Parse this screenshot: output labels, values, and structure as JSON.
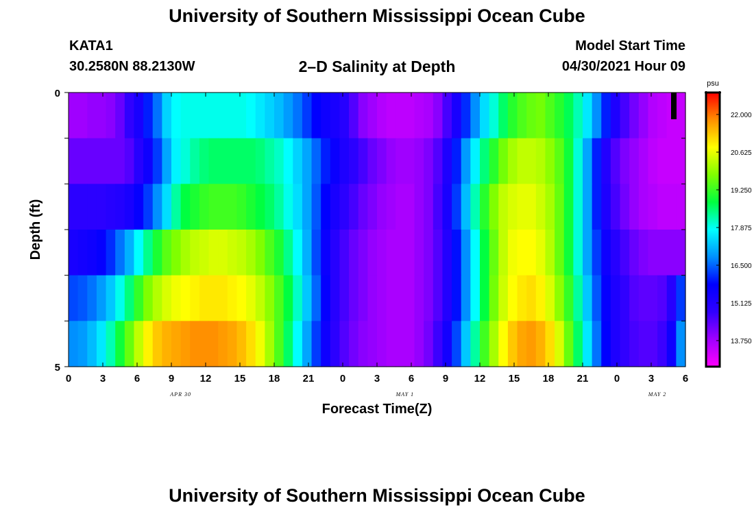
{
  "header": {
    "title": "University of Southern Mississippi Ocean Cube",
    "station_id": "KATA1",
    "station_coords": "30.2580N  88.2130W",
    "chart_title": "2–D Salinity at Depth",
    "model_start_label": "Model Start Time",
    "model_start_value": "04/30/2021 Hour 09"
  },
  "footer": {
    "title": "University of Southern Mississippi Ocean Cube"
  },
  "chart_data": {
    "type": "heatmap",
    "title": "2–D Salinity at Depth",
    "xlabel": "Forecast Time(Z)",
    "ylabel": "Depth (ft)",
    "x_tick_labels": [
      "0",
      "3",
      "6",
      "9",
      "12",
      "15",
      "18",
      "21",
      "0",
      "3",
      "6",
      "9",
      "12",
      "15",
      "18",
      "21",
      "0",
      "3",
      "6"
    ],
    "date_labels": [
      {
        "label": "APR 30",
        "hour": 12
      },
      {
        "label": "MAY 1",
        "hour": 36
      },
      {
        "label": "MAY 2",
        "hour": 63
      }
    ],
    "x_range": [
      0,
      54
    ],
    "y_range": [
      0,
      5
    ],
    "y_tick_labels": [
      "0",
      "5"
    ],
    "colorbar": {
      "unit": "psu",
      "ticks": [
        "22.000",
        "20.625",
        "19.250",
        "17.875",
        "16.500",
        "15.125",
        "13.750"
      ],
      "range": [
        12.8,
        22.8
      ],
      "colors": [
        "#ff00ff",
        "#a000ff",
        "#3000ff",
        "#0000ff",
        "#0090ff",
        "#00ffff",
        "#00ff40",
        "#80ff00",
        "#ffff00",
        "#ff9000",
        "#ff0000"
      ]
    },
    "depth_layers": [
      "0",
      "1",
      "2",
      "3",
      "4",
      "5"
    ],
    "series": [
      {
        "values": [
          13.8,
          13.8,
          13.9,
          13.9,
          14.0,
          14.3,
          14.8,
          15.3,
          16.0,
          16.6,
          17.4,
          17.8,
          17.9,
          17.9,
          17.9,
          17.9,
          17.9,
          17.9,
          17.9,
          17.8,
          17.6,
          17.4,
          17.2,
          16.9,
          16.6,
          16.2,
          15.8,
          15.5,
          15.3,
          15.0,
          14.5,
          14.0,
          13.8,
          13.6,
          13.5,
          13.5,
          13.5,
          13.6,
          13.7,
          14.0,
          14.6,
          15.3,
          16.1,
          16.8,
          17.5,
          18.0,
          18.6,
          19.1,
          19.4,
          19.6,
          19.7,
          19.4,
          19.1,
          18.7,
          18.2,
          17.6,
          16.8,
          16.0,
          15.2,
          14.6,
          14.2,
          13.9,
          13.6,
          13.5,
          13.4,
          13.4
        ]
      },
      {
        "values": [
          14.3,
          14.3,
          14.3,
          14.3,
          14.3,
          14.3,
          14.5,
          15.0,
          15.5,
          16.2,
          17.0,
          17.7,
          18.0,
          18.3,
          18.5,
          18.6,
          18.6,
          18.6,
          18.6,
          18.6,
          18.5,
          18.3,
          18.1,
          17.8,
          17.4,
          17.0,
          16.5,
          16.0,
          15.6,
          15.2,
          14.9,
          14.6,
          14.3,
          14.1,
          13.9,
          13.8,
          13.8,
          13.9,
          14.1,
          14.5,
          15.2,
          16.0,
          16.9,
          17.7,
          18.5,
          19.1,
          19.7,
          20.1,
          20.3,
          20.3,
          20.2,
          19.9,
          19.5,
          18.9,
          18.0,
          17.0,
          16.0,
          15.1,
          14.5,
          14.1,
          13.9,
          13.7,
          13.5,
          13.4,
          13.4,
          13.4
        ]
      },
      {
        "values": [
          14.9,
          14.9,
          14.9,
          14.9,
          15.0,
          15.1,
          15.3,
          15.7,
          16.2,
          16.8,
          17.5,
          18.3,
          18.8,
          19.0,
          19.2,
          19.3,
          19.3,
          19.3,
          19.2,
          19.0,
          18.8,
          18.6,
          18.3,
          17.9,
          17.5,
          17.0,
          16.4,
          15.8,
          15.3,
          14.9,
          14.6,
          14.3,
          14.1,
          13.9,
          13.8,
          13.7,
          13.7,
          13.9,
          14.1,
          14.6,
          15.3,
          16.2,
          17.2,
          18.2,
          19.1,
          19.8,
          20.3,
          20.5,
          20.6,
          20.6,
          20.4,
          20.1,
          19.6,
          18.9,
          18.0,
          17.0,
          16.0,
          15.2,
          14.6,
          14.2,
          13.9,
          13.7,
          13.6,
          13.5,
          13.5,
          13.5
        ]
      },
      {
        "values": [
          15.3,
          15.4,
          15.5,
          15.7,
          16.1,
          16.6,
          17.1,
          17.8,
          18.4,
          19.0,
          19.5,
          19.8,
          20.1,
          20.3,
          20.4,
          20.5,
          20.5,
          20.4,
          20.3,
          20.1,
          19.8,
          19.4,
          19.0,
          18.4,
          17.8,
          17.1,
          16.3,
          15.6,
          15.0,
          14.6,
          14.3,
          14.1,
          13.9,
          13.8,
          13.7,
          13.7,
          13.7,
          13.9,
          14.1,
          14.5,
          15.1,
          15.9,
          16.8,
          17.8,
          18.8,
          19.6,
          20.3,
          20.7,
          20.8,
          20.8,
          20.6,
          20.2,
          19.6,
          18.9,
          18.0,
          17.0,
          16.2,
          15.5,
          15.0,
          14.6,
          14.3,
          14.1,
          14.0,
          14.0,
          14.0,
          14.0
        ]
      },
      {
        "values": [
          16.3,
          16.4,
          16.6,
          16.9,
          17.3,
          17.9,
          18.5,
          19.2,
          19.8,
          20.2,
          20.5,
          20.7,
          20.8,
          20.9,
          21.0,
          21.0,
          21.0,
          20.9,
          20.8,
          20.6,
          20.3,
          19.9,
          19.4,
          18.8,
          18.1,
          17.3,
          16.5,
          15.7,
          15.0,
          14.6,
          14.3,
          14.1,
          13.9,
          13.8,
          13.7,
          13.7,
          13.7,
          13.9,
          14.1,
          14.5,
          15.1,
          15.9,
          16.8,
          17.8,
          18.8,
          19.7,
          20.4,
          20.8,
          21.0,
          21.1,
          20.9,
          20.5,
          19.9,
          19.2,
          18.3,
          17.3,
          16.4,
          15.7,
          15.2,
          14.8,
          14.5,
          14.4,
          14.4,
          14.5,
          15.0,
          16.2
        ]
      },
      {
        "values": [
          16.8,
          16.9,
          17.2,
          17.6,
          18.2,
          18.9,
          19.6,
          20.3,
          20.9,
          21.3,
          21.5,
          21.6,
          21.7,
          21.8,
          21.8,
          21.8,
          21.7,
          21.6,
          21.4,
          21.1,
          20.7,
          20.1,
          19.4,
          18.6,
          17.8,
          17.0,
          16.2,
          15.5,
          14.9,
          14.5,
          14.2,
          14.0,
          13.9,
          13.8,
          13.7,
          13.7,
          13.7,
          13.9,
          14.2,
          14.7,
          15.4,
          16.3,
          17.3,
          18.3,
          19.3,
          20.1,
          20.8,
          21.3,
          21.6,
          21.7,
          21.5,
          21.1,
          20.5,
          19.6,
          18.6,
          17.6,
          16.6,
          15.8,
          15.2,
          14.8,
          14.6,
          14.5,
          14.5,
          14.7,
          15.5,
          16.8
        ]
      }
    ],
    "grid": false,
    "legend": "colorbar right"
  }
}
